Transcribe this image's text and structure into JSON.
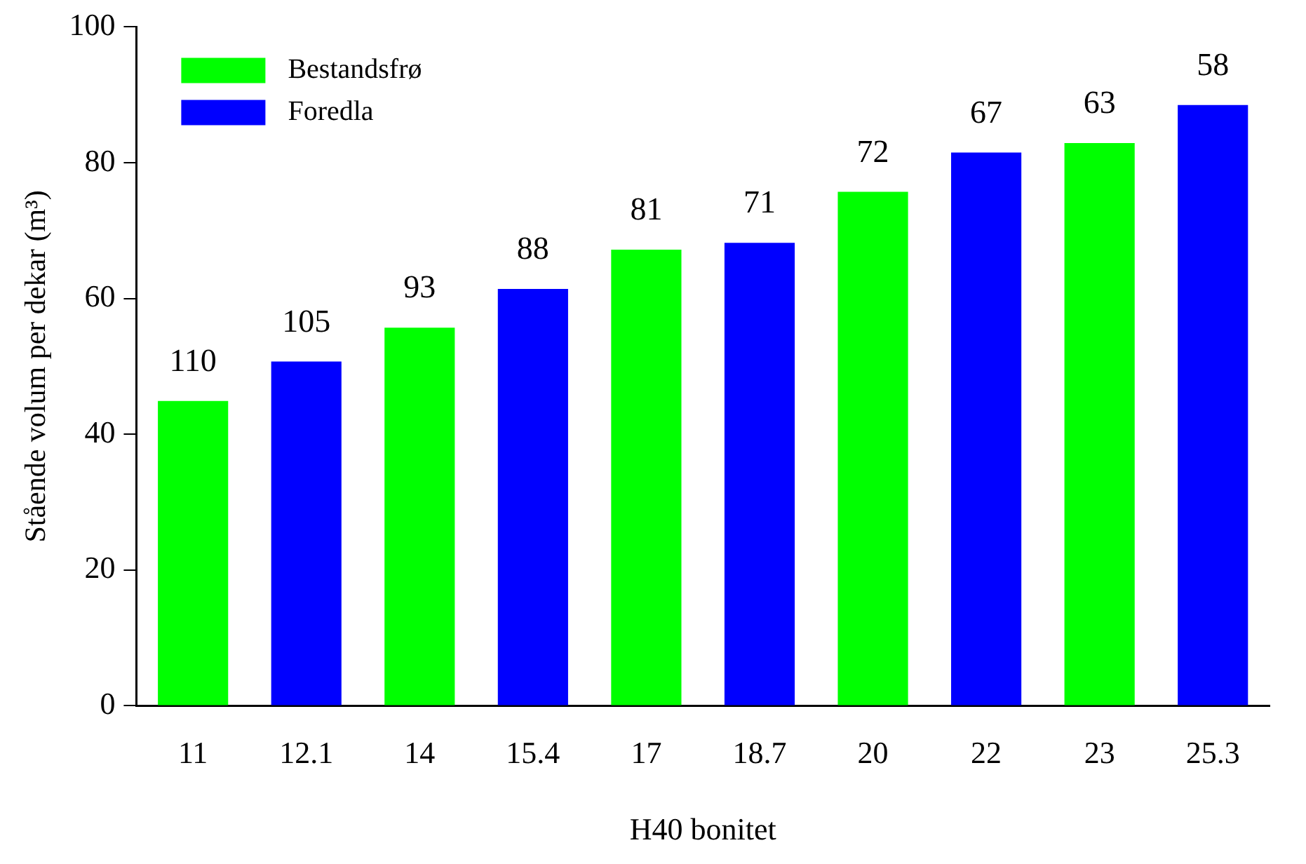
{
  "chart_data": {
    "type": "bar",
    "xlabel": "H40 bonitet",
    "ylabel": "Stående volum per dekar (m³)",
    "categories": [
      "11",
      "12.1",
      "14",
      "15.4",
      "17",
      "18.7",
      "20",
      "22",
      "23",
      "25.3"
    ],
    "series": [
      {
        "name": "Bestandsfrø",
        "color": "#00ff00",
        "values": [
          44.9,
          null,
          55.7,
          null,
          67.2,
          null,
          75.7,
          null,
          82.9,
          null
        ]
      },
      {
        "name": "Foredla",
        "color": "#0000ff",
        "values": [
          null,
          50.7,
          null,
          61.4,
          null,
          68.2,
          null,
          81.5,
          null,
          88.5
        ]
      }
    ],
    "ylim": [
      0,
      100
    ],
    "yticks": [
      0,
      20,
      40,
      60,
      80,
      100
    ],
    "grid": false,
    "legend": "top left",
    "annotations": [
      {
        "text": "110",
        "x": "11",
        "y": 44.9
      },
      {
        "text": "105",
        "x": "12.1",
        "y": 50.7
      },
      {
        "text": "93",
        "x": "14",
        "y": 55.7
      },
      {
        "text": "88",
        "x": "15.4",
        "y": 61.4
      },
      {
        "text": "81",
        "x": "17",
        "y": 67.2
      },
      {
        "text": "71",
        "x": "18.7",
        "y": 68.2
      },
      {
        "text": "72",
        "x": "20",
        "y": 75.7
      },
      {
        "text": "67",
        "x": "22",
        "y": 81.5
      },
      {
        "text": "63",
        "x": "23",
        "y": 82.9
      },
      {
        "text": "58",
        "x": "25.3",
        "y": 88.5
      }
    ]
  }
}
